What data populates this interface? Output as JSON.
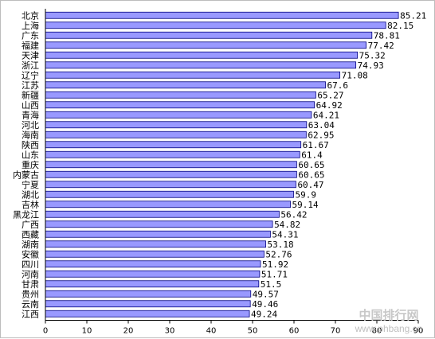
{
  "chart_data": {
    "type": "bar",
    "orientation": "horizontal",
    "title": "",
    "xlabel": "",
    "ylabel": "",
    "xlim": [
      0,
      90
    ],
    "x_ticks": [
      0,
      10,
      20,
      30,
      40,
      50,
      60,
      70,
      80,
      90
    ],
    "grid": false,
    "bar_color": "#9999ff",
    "bar_edge_color": "#000080",
    "categories": [
      "北京",
      "上海",
      "广东",
      "福建",
      "天津",
      "浙江",
      "辽宁",
      "江苏",
      "新疆",
      "山西",
      "青海",
      "河北",
      "海南",
      "陕西",
      "山东",
      "重庆",
      "内蒙古",
      "宁夏",
      "湖北",
      "吉林",
      "黑龙江",
      "广西",
      "西藏",
      "湖南",
      "安徽",
      "四川",
      "河南",
      "甘肃",
      "贵州",
      "云南",
      "江西"
    ],
    "values": [
      85.21,
      82.15,
      78.81,
      77.42,
      75.32,
      74.93,
      71.08,
      67.6,
      65.27,
      64.92,
      64.21,
      63.04,
      62.95,
      61.67,
      61.4,
      60.65,
      60.65,
      60.47,
      59.9,
      59.14,
      56.42,
      54.82,
      54.31,
      53.18,
      52.76,
      51.92,
      51.71,
      51.5,
      49.57,
      49.46,
      49.24
    ],
    "value_labels": [
      "85.21",
      "82.15",
      "78.81",
      "77.42",
      "75.32",
      "74.93",
      "71.08",
      "67.6",
      "65.27",
      "64.92",
      "64.21",
      "63.04",
      "62.95",
      "61.67",
      "61.4",
      "60.65",
      "60.65",
      "60.47",
      "59.9",
      "59.14",
      "56.42",
      "54.82",
      "54.31",
      "53.18",
      "52.76",
      "51.92",
      "51.71",
      "51.5",
      "49.57",
      "49.46",
      "49.24"
    ]
  },
  "watermark": {
    "line1": "中国排行网",
    "line2": "www.phbang.cn"
  }
}
